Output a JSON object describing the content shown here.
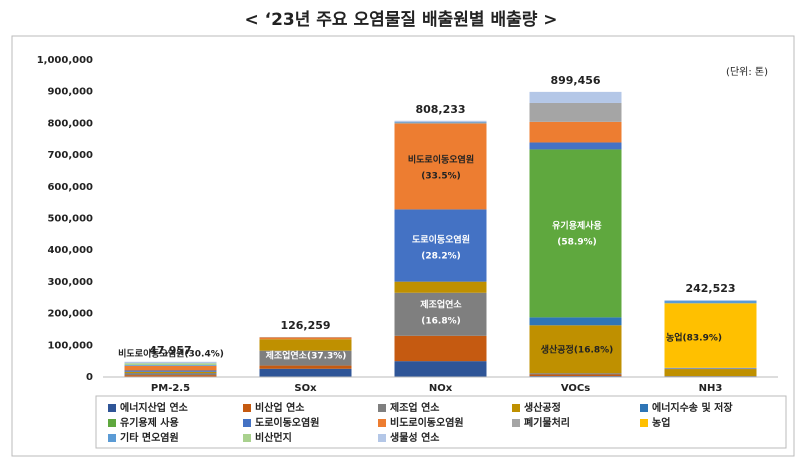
{
  "chart_data": {
    "type": "stacked_bar",
    "title": "< ‘23년 주요 오염물질 배출원별 배출량 >",
    "unit_note": "(단위: 톤)",
    "categories": [
      "PM-2.5",
      "SOx",
      "NOx",
      "VOCs",
      "NH3"
    ],
    "totals": [
      47957,
      126259,
      808233,
      899456,
      242523
    ],
    "total_labels": [
      "47,957",
      "126,259",
      "808,233",
      "899,456",
      "242,523"
    ],
    "series": [
      {
        "name": "에너지산업 연소",
        "color": "#2f5597",
        "values": [
          1200,
          26000,
          50000,
          3000,
          300
        ]
      },
      {
        "name": "비산업 연소",
        "color": "#c55a11",
        "values": [
          4800,
          10000,
          80000,
          5000,
          800
        ]
      },
      {
        "name": "제조업 연소",
        "color": "#7f7f7f",
        "values": [
          6500,
          47095,
          135783,
          4000,
          2000
        ]
      },
      {
        "name": "생산공정",
        "color": "#bf9000",
        "values": [
          3800,
          36000,
          35000,
          151109,
          22000
        ]
      },
      {
        "name": "에너지수송 및 저장",
        "color": "#2e75b6",
        "values": [
          50,
          0,
          0,
          25000,
          0
        ]
      },
      {
        "name": "유기용제 사용",
        "color": "#5fa83e",
        "values": [
          0,
          0,
          0,
          529780,
          0
        ]
      },
      {
        "name": "도로이동오염원",
        "color": "#4472c4",
        "values": [
          4200,
          100,
          227922,
          22000,
          1500
        ]
      },
      {
        "name": "비도로이동오염원",
        "color": "#ed7d31",
        "values": [
          14579,
          5500,
          270758,
          65000,
          0
        ]
      },
      {
        "name": "폐기물처리",
        "color": "#a5a5a5",
        "values": [
          300,
          1200,
          3000,
          59567,
          2500
        ]
      },
      {
        "name": "농업",
        "color": "#ffc000",
        "values": [
          0,
          0,
          0,
          0,
          203477
        ]
      },
      {
        "name": "기타 면오염원",
        "color": "#5b9bd5",
        "values": [
          2500,
          0,
          2000,
          0,
          8000
        ]
      },
      {
        "name": "비산먼지",
        "color": "#a9d18e",
        "values": [
          5500,
          0,
          0,
          0,
          0
        ]
      },
      {
        "name": "생물성 연소",
        "color": "#b4c7e7",
        "values": [
          4528,
          364,
          3770,
          35000,
          1946
        ]
      }
    ],
    "annotations": [
      [
        "비도로이동오염원(30.4%)"
      ],
      [
        "제조업연소(37.3%)"
      ],
      [
        "비도로이동오염원",
        "(33.5%)"
      ],
      [
        "도로이동오염원",
        "(28.2%)"
      ],
      [
        "제조업연소",
        "(16.8%)"
      ],
      [
        "유기용제사용",
        "(58.9%)"
      ],
      [
        "생산공정(16.8%)"
      ],
      [
        "농업(83.9%)"
      ]
    ],
    "ylim": [
      0,
      1000000
    ],
    "yticks": [
      0,
      {
        "value": 100000,
        "label": "100,000"
      },
      {
        "value": 200000,
        "label": "200,000"
      },
      {
        "value": 300000,
        "label": "300,000"
      },
      {
        "value": 400000,
        "label": "400,000"
      },
      {
        "value": 500000,
        "label": "500,000"
      },
      {
        "value": 600000,
        "label": "600,000"
      },
      {
        "value": 700000,
        "label": "700,000"
      },
      {
        "value": 800000,
        "label": "800,000"
      },
      {
        "value": 900000,
        "label": "900,000"
      },
      {
        "value": 1000000,
        "label": "1,000,000"
      }
    ],
    "grid": false
  }
}
